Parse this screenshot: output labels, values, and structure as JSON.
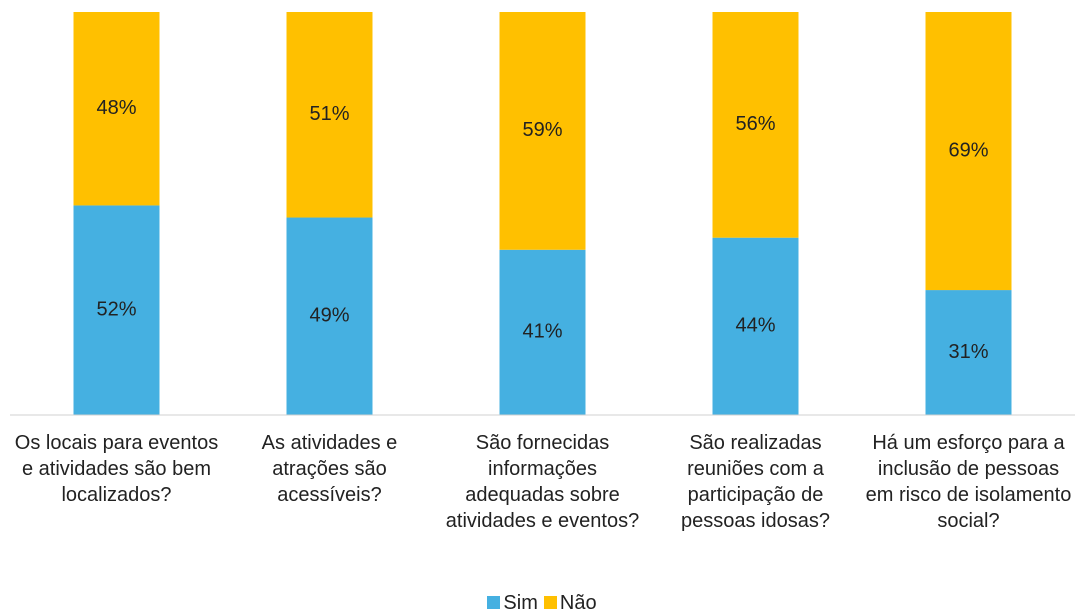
{
  "chart_data": {
    "type": "stacked_bar_100",
    "categories": [
      "Os locais para eventos e atividades são bem localizados?",
      "As atividades e atrações são acessíveis?",
      "São fornecidas informações adequadas sobre atividades e eventos?",
      "São realizadas reuniões com a participação de pessoas idosas?",
      "Há um esforço para a inclusão de pessoas em risco de isolamento social?"
    ],
    "series": [
      {
        "name": "Sim",
        "color": "#45b0e1",
        "values": [
          52,
          49,
          41,
          44,
          31
        ],
        "value_labels": [
          "52%",
          "49%",
          "41%",
          "44%",
          "31%"
        ]
      },
      {
        "name": "Não",
        "color": "#ffc000",
        "values": [
          48,
          51,
          59,
          56,
          69
        ],
        "value_labels": [
          "48%",
          "51%",
          "59%",
          "56%",
          "69%"
        ]
      }
    ],
    "ylim": [
      0,
      100
    ],
    "legend": "bottom"
  }
}
